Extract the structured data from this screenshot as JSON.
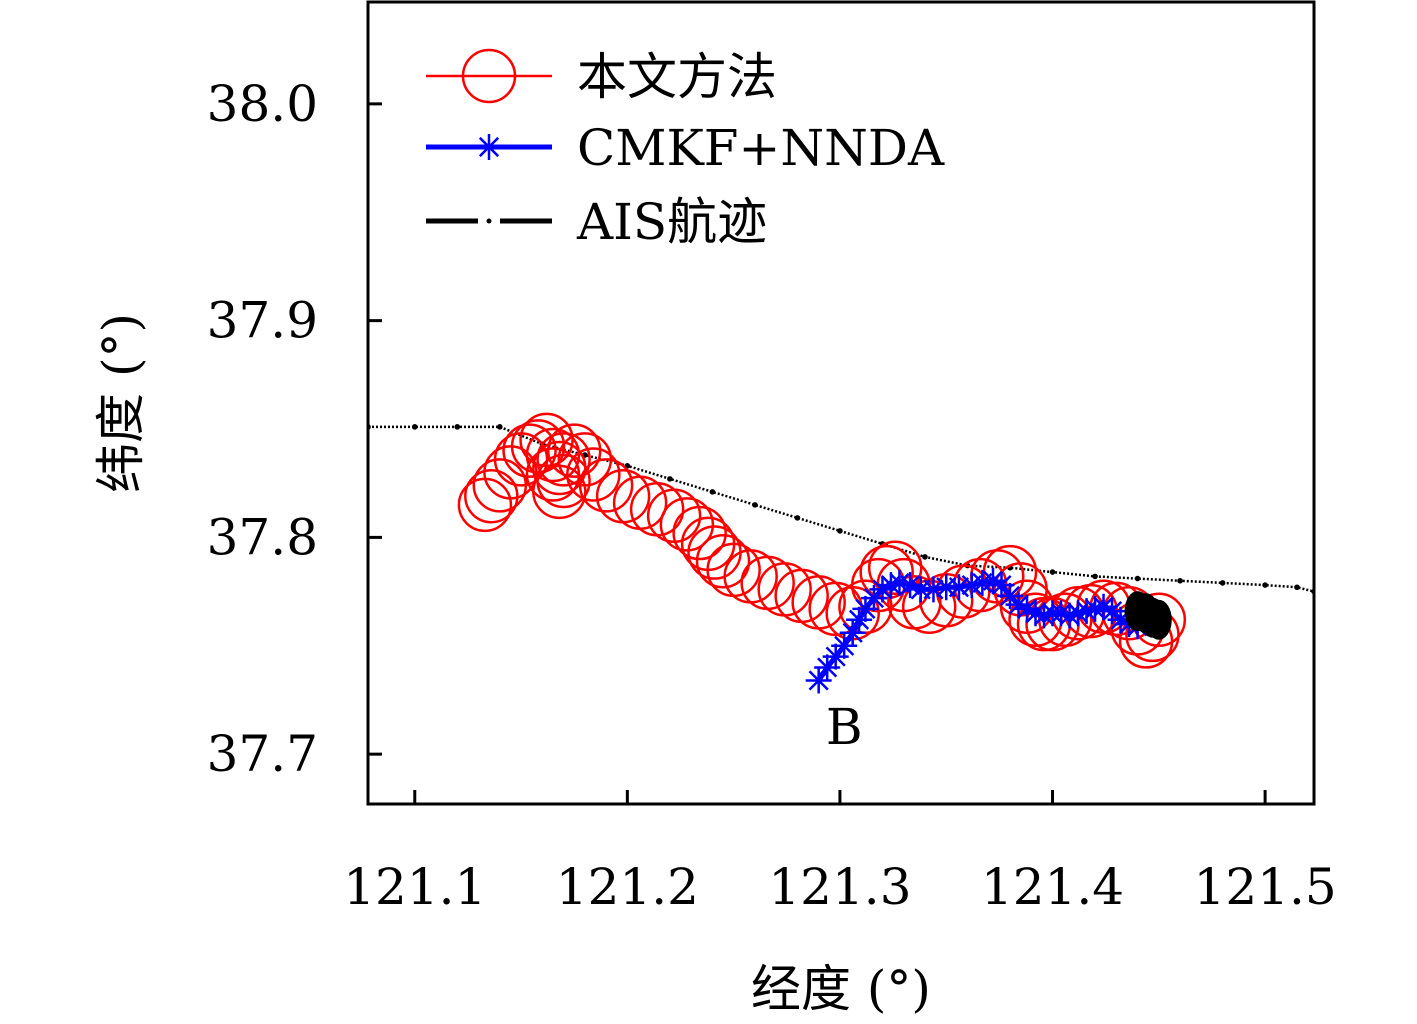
{
  "chart_data": {
    "type": "line",
    "xlabel": "经度 (°)",
    "ylabel": "纬度 (°)",
    "xlim": [
      121.078,
      121.523
    ],
    "ylim": [
      37.677,
      38.047
    ],
    "xticks": [
      121.1,
      121.2,
      121.3,
      121.4,
      121.5
    ],
    "xtick_labels": [
      "121.1",
      "121.2",
      "121.3",
      "121.4",
      "121.5"
    ],
    "yticks": [
      37.7,
      37.8,
      37.9,
      38.0
    ],
    "ytick_labels": [
      "37.7",
      "37.8",
      "37.9",
      "38.0"
    ],
    "grid": false,
    "legend_position": "top-left",
    "annotations": [
      {
        "text": "B",
        "x": 121.302,
        "y": 37.713
      }
    ],
    "series": [
      {
        "name": "本文方法",
        "color": "#ff0000",
        "marker": "circle",
        "x": [
          121.133,
          121.136,
          121.14,
          121.145,
          121.15,
          121.154,
          121.158,
          121.162,
          121.165,
          121.168,
          121.17,
          121.168,
          121.165,
          121.17,
          121.175,
          121.18,
          121.184,
          121.19,
          121.198,
          121.206,
          121.214,
          121.222,
          121.228,
          121.234,
          121.238,
          121.241,
          121.245,
          121.25,
          121.258,
          121.266,
          121.274,
          121.282,
          121.29,
          121.298,
          121.306,
          121.312,
          121.318,
          121.322,
          121.326,
          121.33,
          121.335,
          121.342,
          121.35,
          121.358,
          121.366,
          121.374,
          121.38,
          121.385,
          121.388,
          121.392,
          121.396,
          121.4,
          121.406,
          121.412,
          121.418,
          121.424,
          121.43,
          121.436,
          121.44,
          121.444,
          121.447,
          121.45
        ],
        "y": [
          37.815,
          37.819,
          37.824,
          37.83,
          37.836,
          37.84,
          37.842,
          37.845,
          37.838,
          37.832,
          37.826,
          37.821,
          37.829,
          37.836,
          37.84,
          37.836,
          37.829,
          37.824,
          37.819,
          37.816,
          37.813,
          37.81,
          37.806,
          37.802,
          37.797,
          37.793,
          37.789,
          37.785,
          37.782,
          37.779,
          37.776,
          37.773,
          37.77,
          37.767,
          37.765,
          37.768,
          37.778,
          37.784,
          37.786,
          37.778,
          37.77,
          37.768,
          37.771,
          37.775,
          37.778,
          37.782,
          37.784,
          37.776,
          37.768,
          37.762,
          37.76,
          37.76,
          37.762,
          37.765,
          37.766,
          37.768,
          37.767,
          37.765,
          37.758,
          37.752,
          37.755,
          37.762
        ]
      },
      {
        "name": "CMKF+NNDA",
        "color": "#0000ff",
        "marker": "asterisk",
        "x": [
          121.29,
          121.294,
          121.298,
          121.302,
          121.306,
          121.309,
          121.312,
          121.316,
          121.32,
          121.324,
          121.328,
          121.333,
          121.338,
          121.344,
          121.35,
          121.356,
          121.362,
          121.367,
          121.372,
          121.376,
          121.38,
          121.384,
          121.388,
          121.392,
          121.396,
          121.4,
          121.404,
          121.408,
          121.412,
          121.416,
          121.42,
          121.424,
          121.428,
          121.432,
          121.436,
          121.44
        ],
        "y": [
          37.734,
          37.74,
          37.745,
          37.75,
          37.756,
          37.762,
          37.767,
          37.772,
          37.776,
          37.778,
          37.779,
          37.778,
          37.776,
          37.776,
          37.777,
          37.777,
          37.778,
          37.779,
          37.78,
          37.778,
          37.773,
          37.769,
          37.767,
          37.765,
          37.764,
          37.765,
          37.765,
          37.764,
          37.765,
          37.766,
          37.767,
          37.768,
          37.766,
          37.762,
          37.76,
          37.759
        ]
      },
      {
        "name": "AIS航迹",
        "color": "#000000",
        "marker": "dash-dot",
        "x": [
          121.078,
          121.1,
          121.12,
          121.14,
          121.16,
          121.18,
          121.2,
          121.22,
          121.24,
          121.26,
          121.28,
          121.3,
          121.32,
          121.34,
          121.36,
          121.38,
          121.4,
          121.42,
          121.44,
          121.46,
          121.48,
          121.5,
          121.515,
          121.523
        ],
        "y": [
          37.851,
          37.851,
          37.851,
          37.851,
          37.843,
          37.838,
          37.833,
          37.827,
          37.821,
          37.815,
          37.809,
          37.803,
          37.797,
          37.791,
          37.787,
          37.786,
          37.784,
          37.782,
          37.781,
          37.78,
          37.779,
          37.778,
          37.777,
          37.775
        ]
      }
    ]
  }
}
